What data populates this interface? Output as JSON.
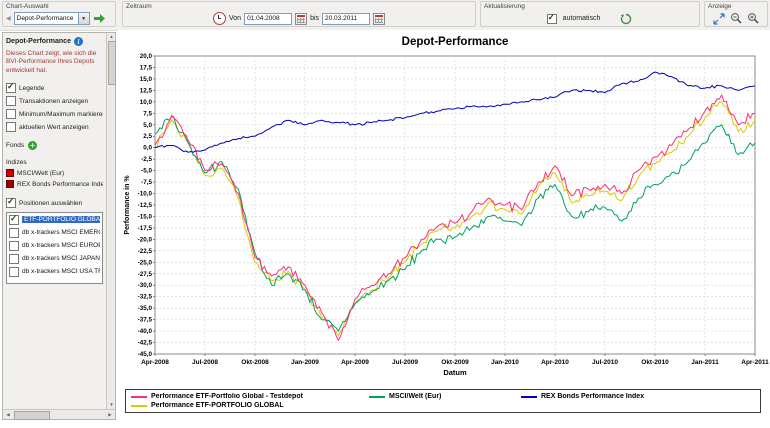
{
  "toolbar": {
    "chart_auswahl": {
      "label": "Chart-Auswahl",
      "dropdown_value": "Depot-Performance"
    },
    "zeitraum": {
      "label": "Zeitraum",
      "von_label": "Von",
      "von_value": "01.04.2008",
      "bis_label": "bis",
      "bis_value": "20.03.2011"
    },
    "aktualisierung": {
      "label": "Aktualisierung",
      "automatisch_label": "automatisch",
      "automatisch_checked": true
    },
    "anzeige": {
      "label": "Anzeige"
    }
  },
  "sidebar": {
    "title": "Depot-Performance",
    "description": "Dieses Chart zeigt, wie sich die BVI-Performance Ihres Depots entwickelt hat.",
    "options": [
      {
        "label": "Legende",
        "checked": true
      },
      {
        "label": "Transaktionen anzeigen",
        "checked": false
      },
      {
        "label": "Minimum/Maximum markieren",
        "checked": false
      },
      {
        "label": "aktuellen Wert anzeigen",
        "checked": false
      }
    ],
    "fonds_label": "Fonds",
    "indizes_label": "Indizes",
    "indizes": [
      {
        "label": "MSCI/Welt (Eur)",
        "color": "#d40000"
      },
      {
        "label": "REX Bonds Performance Index",
        "color": "#a00000"
      }
    ],
    "positionen_label": "Positionen auswählen",
    "positionen_checked": true,
    "positions": [
      {
        "label": "ETF-PORTFOLIO GLOBAL",
        "checked": true,
        "selected": true
      },
      {
        "label": "db x-trackers MSCI EMERGING MKT",
        "checked": false
      },
      {
        "label": "db x-trackers MSCI EUROPE TRN I",
        "checked": false
      },
      {
        "label": "db x-trackers MSCI JAPAN TRN IN",
        "checked": false
      },
      {
        "label": "db x-trackers MSCI USA TRN INDE",
        "checked": false
      }
    ]
  },
  "chart_data": {
    "type": "line",
    "title": "Depot-Performance",
    "xlabel": "Datum",
    "ylabel": "Performance in %",
    "ylim": [
      -45.0,
      20.0
    ],
    "y_step": 2.5,
    "grid": true,
    "legend_position": "bottom",
    "x_unit": "month",
    "x_tick_labels": [
      "Apr-2008",
      "Jul-2008",
      "Okt-2008",
      "Jan-2009",
      "Apr-2009",
      "Jul-2009",
      "Okt-2009",
      "Jan-2010",
      "Apr-2010",
      "Jul-2010",
      "Okt-2010",
      "Jan-2011",
      "Apr-2011"
    ],
    "series": [
      {
        "name": "Performance ETF-Portfolio Global - Testdepot",
        "color": "#ff2d78",
        "values": [
          0.5,
          7.0,
          1.5,
          -5.0,
          -3.5,
          -10.0,
          -24.0,
          -28.0,
          -26.0,
          -30.0,
          -36.0,
          -42.0,
          -33.0,
          -30.0,
          -27.5,
          -24.0,
          -20.0,
          -17.0,
          -16.5,
          -14.0,
          -11.0,
          -12.5,
          -13.5,
          -7.5,
          -4.0,
          -10.5,
          -9.0,
          -8.0,
          -10.0,
          -5.0,
          -2.0,
          0.5,
          4.0,
          8.0,
          11.5,
          5.0,
          7.5
        ]
      },
      {
        "name": "MSCI/Welt (Eur)",
        "color": "#00a05a",
        "values": [
          3.0,
          7.0,
          1.0,
          -5.5,
          -3.0,
          -9.0,
          -23.0,
          -30.0,
          -27.5,
          -31.0,
          -37.5,
          -40.0,
          -34.0,
          -31.5,
          -29.0,
          -26.5,
          -22.5,
          -20.0,
          -19.5,
          -17.5,
          -15.0,
          -16.0,
          -17.0,
          -11.0,
          -8.0,
          -15.0,
          -14.0,
          -13.0,
          -16.0,
          -11.0,
          -8.0,
          -5.5,
          -3.0,
          1.0,
          5.0,
          -1.5,
          1.0
        ]
      },
      {
        "name": "REX Bonds Performance Index",
        "color": "#0000bb",
        "values": [
          0.0,
          0.5,
          -1.0,
          -0.5,
          1.0,
          2.0,
          2.5,
          4.5,
          6.0,
          5.0,
          6.0,
          5.5,
          5.0,
          5.5,
          6.0,
          6.5,
          7.5,
          8.0,
          8.5,
          9.0,
          9.0,
          9.5,
          10.0,
          10.5,
          11.0,
          12.5,
          12.5,
          12.0,
          14.0,
          14.5,
          16.5,
          15.5,
          13.5,
          13.0,
          13.5,
          12.5,
          13.5
        ]
      },
      {
        "name": "Performance ETF-PORTFOLIO GLOBAL",
        "color": "#ddc900",
        "values": [
          0.0,
          6.0,
          1.0,
          -6.0,
          -4.5,
          -11.0,
          -25.0,
          -29.0,
          -27.0,
          -31.0,
          -37.0,
          -41.0,
          -34.0,
          -31.0,
          -28.5,
          -25.0,
          -21.0,
          -18.0,
          -17.5,
          -15.0,
          -12.0,
          -13.5,
          -14.5,
          -8.5,
          -5.5,
          -12.0,
          -10.5,
          -9.5,
          -11.5,
          -6.5,
          -3.5,
          -1.0,
          2.5,
          6.5,
          10.0,
          3.5,
          6.0
        ]
      }
    ]
  }
}
